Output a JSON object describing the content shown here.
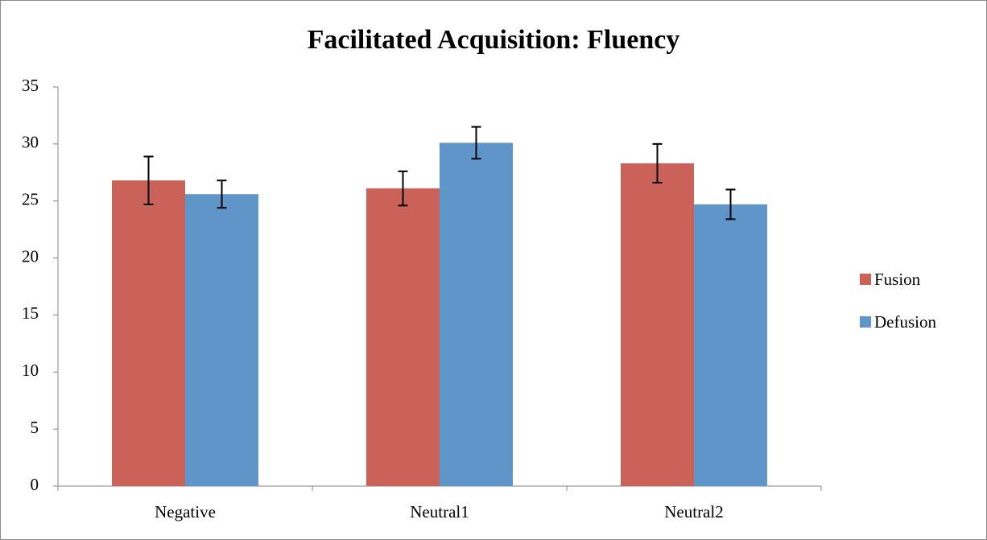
{
  "chart_data": {
    "type": "bar",
    "title": "Facilitated Acquisition: Fluency",
    "categories": [
      "Negative",
      "Neutral1",
      "Neutral2"
    ],
    "series": [
      {
        "name": "Fusion",
        "color": "#cb6259",
        "values": [
          26.8,
          26.1,
          28.3
        ],
        "errors": [
          2.1,
          1.5,
          1.7
        ]
      },
      {
        "name": "Defusion",
        "color": "#6095c9",
        "values": [
          25.6,
          30.1,
          24.7
        ],
        "errors": [
          1.2,
          1.4,
          1.3
        ]
      }
    ],
    "ylim": [
      0,
      35
    ],
    "yticks": [
      0,
      5,
      10,
      15,
      20,
      25,
      30,
      35
    ],
    "grid": false,
    "legend": "right"
  }
}
